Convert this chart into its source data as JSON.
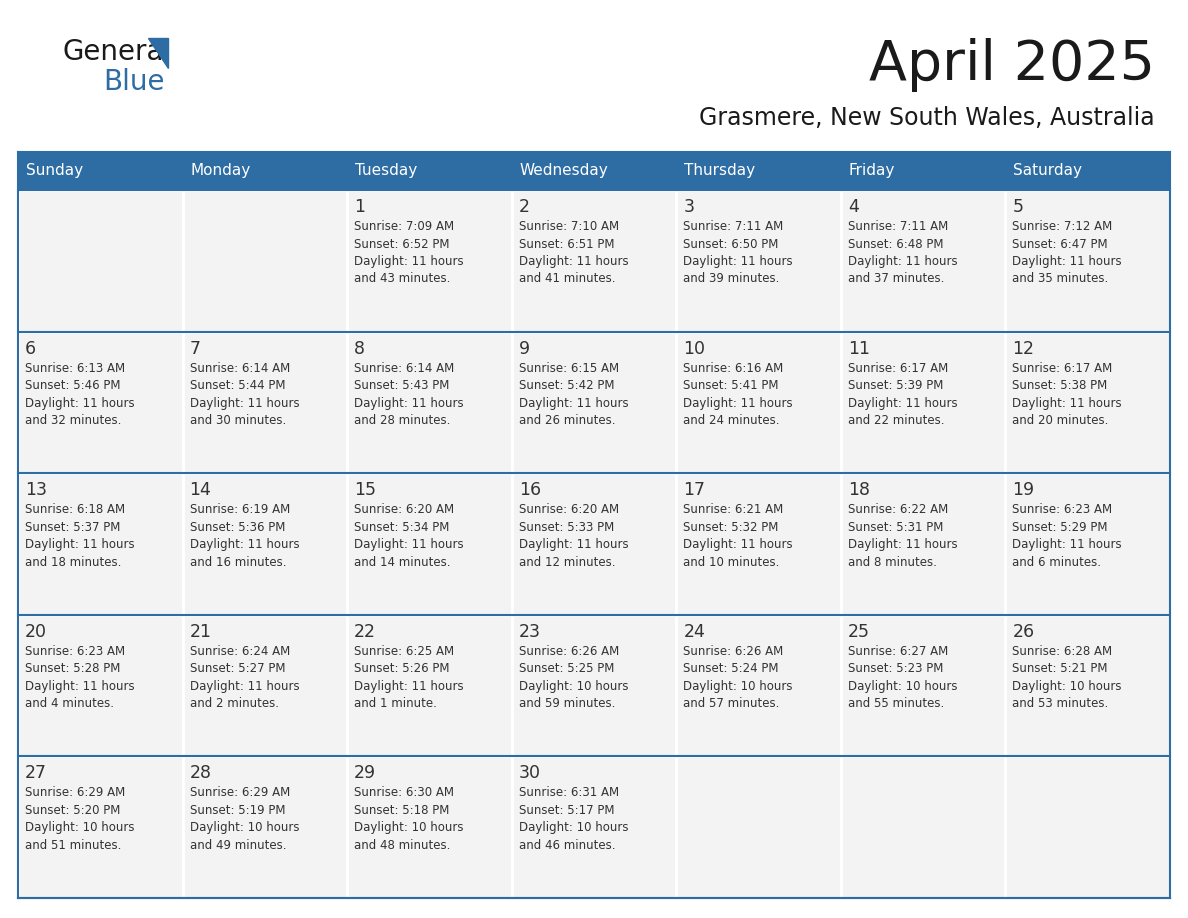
{
  "title": "April 2025",
  "subtitle": "Grasmere, New South Wales, Australia",
  "days_of_week": [
    "Sunday",
    "Monday",
    "Tuesday",
    "Wednesday",
    "Thursday",
    "Friday",
    "Saturday"
  ],
  "header_bg": "#2D6DA4",
  "header_text": "#FFFFFF",
  "cell_bg": "#F3F3F3",
  "border_color": "#2D6DA4",
  "text_color": "#333333",
  "title_color": "#1a1a1a",
  "logo_general_color": "#1a1a1a",
  "logo_blue_color": "#2D6DA4",
  "logo_triangle_color": "#2D6DA4",
  "calendar_data": [
    [
      {
        "day": "",
        "info": ""
      },
      {
        "day": "",
        "info": ""
      },
      {
        "day": "1",
        "info": "Sunrise: 7:09 AM\nSunset: 6:52 PM\nDaylight: 11 hours\nand 43 minutes."
      },
      {
        "day": "2",
        "info": "Sunrise: 7:10 AM\nSunset: 6:51 PM\nDaylight: 11 hours\nand 41 minutes."
      },
      {
        "day": "3",
        "info": "Sunrise: 7:11 AM\nSunset: 6:50 PM\nDaylight: 11 hours\nand 39 minutes."
      },
      {
        "day": "4",
        "info": "Sunrise: 7:11 AM\nSunset: 6:48 PM\nDaylight: 11 hours\nand 37 minutes."
      },
      {
        "day": "5",
        "info": "Sunrise: 7:12 AM\nSunset: 6:47 PM\nDaylight: 11 hours\nand 35 minutes."
      }
    ],
    [
      {
        "day": "6",
        "info": "Sunrise: 6:13 AM\nSunset: 5:46 PM\nDaylight: 11 hours\nand 32 minutes."
      },
      {
        "day": "7",
        "info": "Sunrise: 6:14 AM\nSunset: 5:44 PM\nDaylight: 11 hours\nand 30 minutes."
      },
      {
        "day": "8",
        "info": "Sunrise: 6:14 AM\nSunset: 5:43 PM\nDaylight: 11 hours\nand 28 minutes."
      },
      {
        "day": "9",
        "info": "Sunrise: 6:15 AM\nSunset: 5:42 PM\nDaylight: 11 hours\nand 26 minutes."
      },
      {
        "day": "10",
        "info": "Sunrise: 6:16 AM\nSunset: 5:41 PM\nDaylight: 11 hours\nand 24 minutes."
      },
      {
        "day": "11",
        "info": "Sunrise: 6:17 AM\nSunset: 5:39 PM\nDaylight: 11 hours\nand 22 minutes."
      },
      {
        "day": "12",
        "info": "Sunrise: 6:17 AM\nSunset: 5:38 PM\nDaylight: 11 hours\nand 20 minutes."
      }
    ],
    [
      {
        "day": "13",
        "info": "Sunrise: 6:18 AM\nSunset: 5:37 PM\nDaylight: 11 hours\nand 18 minutes."
      },
      {
        "day": "14",
        "info": "Sunrise: 6:19 AM\nSunset: 5:36 PM\nDaylight: 11 hours\nand 16 minutes."
      },
      {
        "day": "15",
        "info": "Sunrise: 6:20 AM\nSunset: 5:34 PM\nDaylight: 11 hours\nand 14 minutes."
      },
      {
        "day": "16",
        "info": "Sunrise: 6:20 AM\nSunset: 5:33 PM\nDaylight: 11 hours\nand 12 minutes."
      },
      {
        "day": "17",
        "info": "Sunrise: 6:21 AM\nSunset: 5:32 PM\nDaylight: 11 hours\nand 10 minutes."
      },
      {
        "day": "18",
        "info": "Sunrise: 6:22 AM\nSunset: 5:31 PM\nDaylight: 11 hours\nand 8 minutes."
      },
      {
        "day": "19",
        "info": "Sunrise: 6:23 AM\nSunset: 5:29 PM\nDaylight: 11 hours\nand 6 minutes."
      }
    ],
    [
      {
        "day": "20",
        "info": "Sunrise: 6:23 AM\nSunset: 5:28 PM\nDaylight: 11 hours\nand 4 minutes."
      },
      {
        "day": "21",
        "info": "Sunrise: 6:24 AM\nSunset: 5:27 PM\nDaylight: 11 hours\nand 2 minutes."
      },
      {
        "day": "22",
        "info": "Sunrise: 6:25 AM\nSunset: 5:26 PM\nDaylight: 11 hours\nand 1 minute."
      },
      {
        "day": "23",
        "info": "Sunrise: 6:26 AM\nSunset: 5:25 PM\nDaylight: 10 hours\nand 59 minutes."
      },
      {
        "day": "24",
        "info": "Sunrise: 6:26 AM\nSunset: 5:24 PM\nDaylight: 10 hours\nand 57 minutes."
      },
      {
        "day": "25",
        "info": "Sunrise: 6:27 AM\nSunset: 5:23 PM\nDaylight: 10 hours\nand 55 minutes."
      },
      {
        "day": "26",
        "info": "Sunrise: 6:28 AM\nSunset: 5:21 PM\nDaylight: 10 hours\nand 53 minutes."
      }
    ],
    [
      {
        "day": "27",
        "info": "Sunrise: 6:29 AM\nSunset: 5:20 PM\nDaylight: 10 hours\nand 51 minutes."
      },
      {
        "day": "28",
        "info": "Sunrise: 6:29 AM\nSunset: 5:19 PM\nDaylight: 10 hours\nand 49 minutes."
      },
      {
        "day": "29",
        "info": "Sunrise: 6:30 AM\nSunset: 5:18 PM\nDaylight: 10 hours\nand 48 minutes."
      },
      {
        "day": "30",
        "info": "Sunrise: 6:31 AM\nSunset: 5:17 PM\nDaylight: 10 hours\nand 46 minutes."
      },
      {
        "day": "",
        "info": ""
      },
      {
        "day": "",
        "info": ""
      },
      {
        "day": "",
        "info": ""
      }
    ]
  ]
}
